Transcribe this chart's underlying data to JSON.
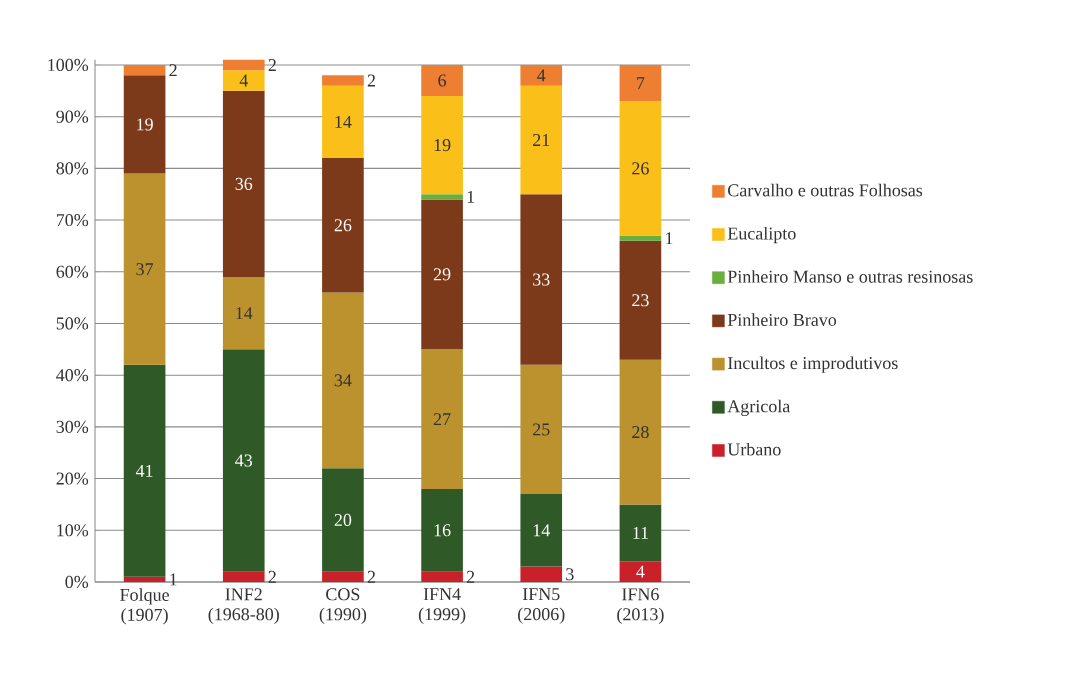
{
  "chart_data": {
    "type": "bar",
    "stacked": true,
    "data_labels": true,
    "grid": "y",
    "legend": "right",
    "categories": [
      "Folque (1907)",
      "INF2 (1968-80)",
      "COS (1990)",
      "IFN4 (1999)",
      "IFN5 (2006)",
      "IFN6 (2013)"
    ],
    "ylim": [
      0,
      101
    ],
    "yticks": [
      {
        "value": 0,
        "label": "0%"
      },
      {
        "value": 10,
        "label": "10%"
      },
      {
        "value": 20,
        "label": "20%"
      },
      {
        "value": 30,
        "label": "30%"
      },
      {
        "value": 40,
        "label": "40%"
      },
      {
        "value": 50,
        "label": "50%"
      },
      {
        "value": 60,
        "label": "60%"
      },
      {
        "value": 70,
        "label": "70%"
      },
      {
        "value": 80,
        "label": "80%"
      },
      {
        "value": 90,
        "label": "90%"
      },
      {
        "value": 100,
        "label": "100%"
      }
    ],
    "series": [
      {
        "name": "Urbano",
        "color": "#c9202a",
        "values": [
          1,
          2,
          2,
          2,
          3,
          4
        ]
      },
      {
        "name": "Agricola",
        "color": "#2f5a27",
        "values": [
          41,
          43,
          20,
          16,
          14,
          11
        ]
      },
      {
        "name": "Incultos e improdutivos",
        "color": "#bc922e",
        "values": [
          37,
          14,
          34,
          27,
          25,
          28
        ]
      },
      {
        "name": "Pinheiro Bravo",
        "color": "#7c3a1a",
        "values": [
          19,
          36,
          26,
          29,
          33,
          23
        ]
      },
      {
        "name": "Pinheiro Manso e outras resinosas",
        "color": "#6aae3e",
        "values": [
          null,
          null,
          null,
          1,
          null,
          1
        ]
      },
      {
        "name": "Eucalipto",
        "color": "#fbbf1a",
        "values": [
          null,
          4,
          14,
          19,
          21,
          26
        ]
      },
      {
        "name": "Carvalho e outras Folhosas",
        "color": "#ee7e32",
        "values": [
          2,
          2,
          2,
          6,
          4,
          7
        ]
      }
    ]
  }
}
